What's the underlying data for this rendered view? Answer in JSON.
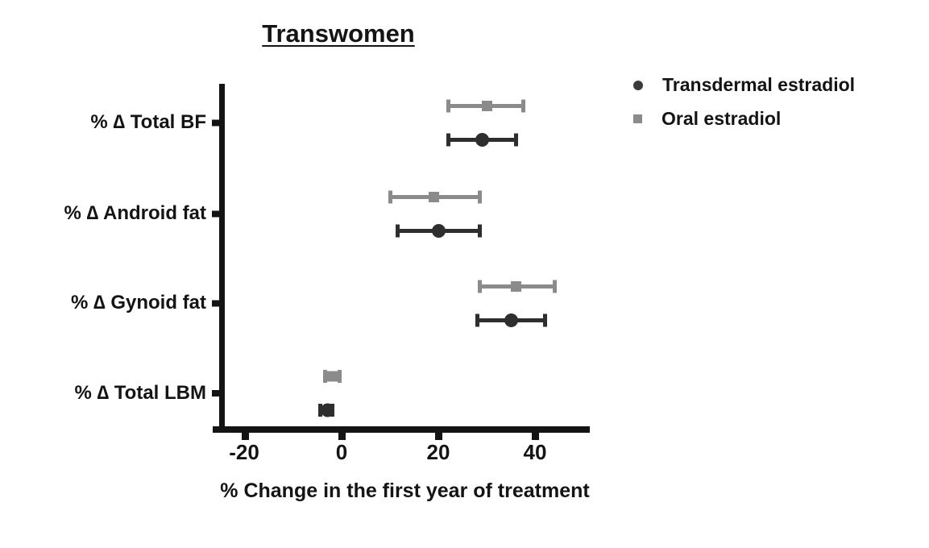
{
  "chart_data": {
    "type": "scatter",
    "subtype": "forest-plot-horizontal",
    "title": "Transwomen",
    "xlabel": "% Change in the first year of treatment",
    "categories": [
      "% ∆ Total BF",
      "% ∆ Android fat",
      "% ∆ Gynoid fat",
      "% ∆ Total LBM"
    ],
    "x_tick_labels": [
      "-20",
      "0",
      "20",
      "40"
    ],
    "x_ticks": [
      -20,
      0,
      20,
      40
    ],
    "xlim": [
      -27,
      51
    ],
    "grid": false,
    "legend_position": "top-right",
    "legend": [
      {
        "label": "Transdermal estradiol",
        "marker": "circle",
        "color": "#3a3a3a"
      },
      {
        "label": "Oral estradiol",
        "marker": "square",
        "color": "#8b8b8b"
      }
    ],
    "series": [
      {
        "name": "Oral estradiol",
        "marker": "square",
        "color": "#8b8b8b",
        "values": [
          30,
          19,
          36,
          -2
        ],
        "ci_low": [
          22,
          10,
          28.5,
          -3.5
        ],
        "ci_high": [
          37.5,
          28.5,
          44,
          -0.5
        ]
      },
      {
        "name": "Transdermal estradiol",
        "marker": "circle",
        "color": "#2e2e2e",
        "values": [
          29,
          20,
          35,
          -3
        ],
        "ci_low": [
          22,
          11.5,
          28,
          -4.5
        ],
        "ci_high": [
          36,
          28.5,
          42,
          -2
        ]
      }
    ],
    "axis_color": "#141414"
  }
}
